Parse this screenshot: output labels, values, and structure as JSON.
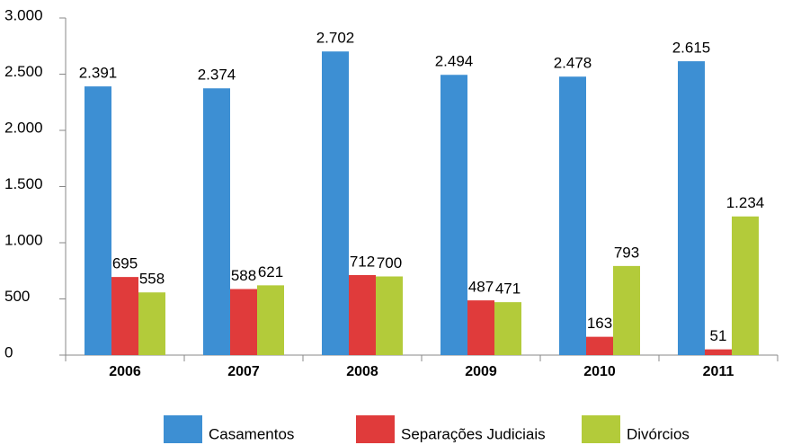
{
  "chart_data": {
    "type": "bar",
    "categories": [
      "2006",
      "2007",
      "2008",
      "2009",
      "2010",
      "2011"
    ],
    "series": [
      {
        "name": "Casamentos",
        "color": "#3d8fd3",
        "values": [
          2391,
          2374,
          2702,
          2494,
          2478,
          2615
        ],
        "value_labels": [
          "2.391",
          "2.374",
          "2.702",
          "2.494",
          "2.478",
          "2.615"
        ]
      },
      {
        "name": "Separações Judiciais",
        "color": "#e03b3b",
        "values": [
          695,
          588,
          712,
          487,
          163,
          51
        ]
      },
      {
        "name": "Divórcios",
        "color": "#b3cb3a",
        "values": [
          558,
          621,
          700,
          471,
          793,
          1234
        ],
        "value_labels": [
          "558",
          "621",
          "700",
          "471",
          "793",
          "1.234"
        ]
      }
    ],
    "ylim": [
      0,
      3000
    ],
    "yticks": [
      0,
      {
        "value": 500,
        "label": "500"
      },
      {
        "value": 1000,
        "label": "1.000"
      },
      {
        "value": 1500,
        "label": "1.500"
      },
      {
        "value": 2000,
        "label": "2.000"
      },
      {
        "value": 2500,
        "label": "2.500"
      },
      {
        "value": 3000,
        "label": "3.000"
      }
    ],
    "grid": false,
    "legend": "bottom"
  }
}
